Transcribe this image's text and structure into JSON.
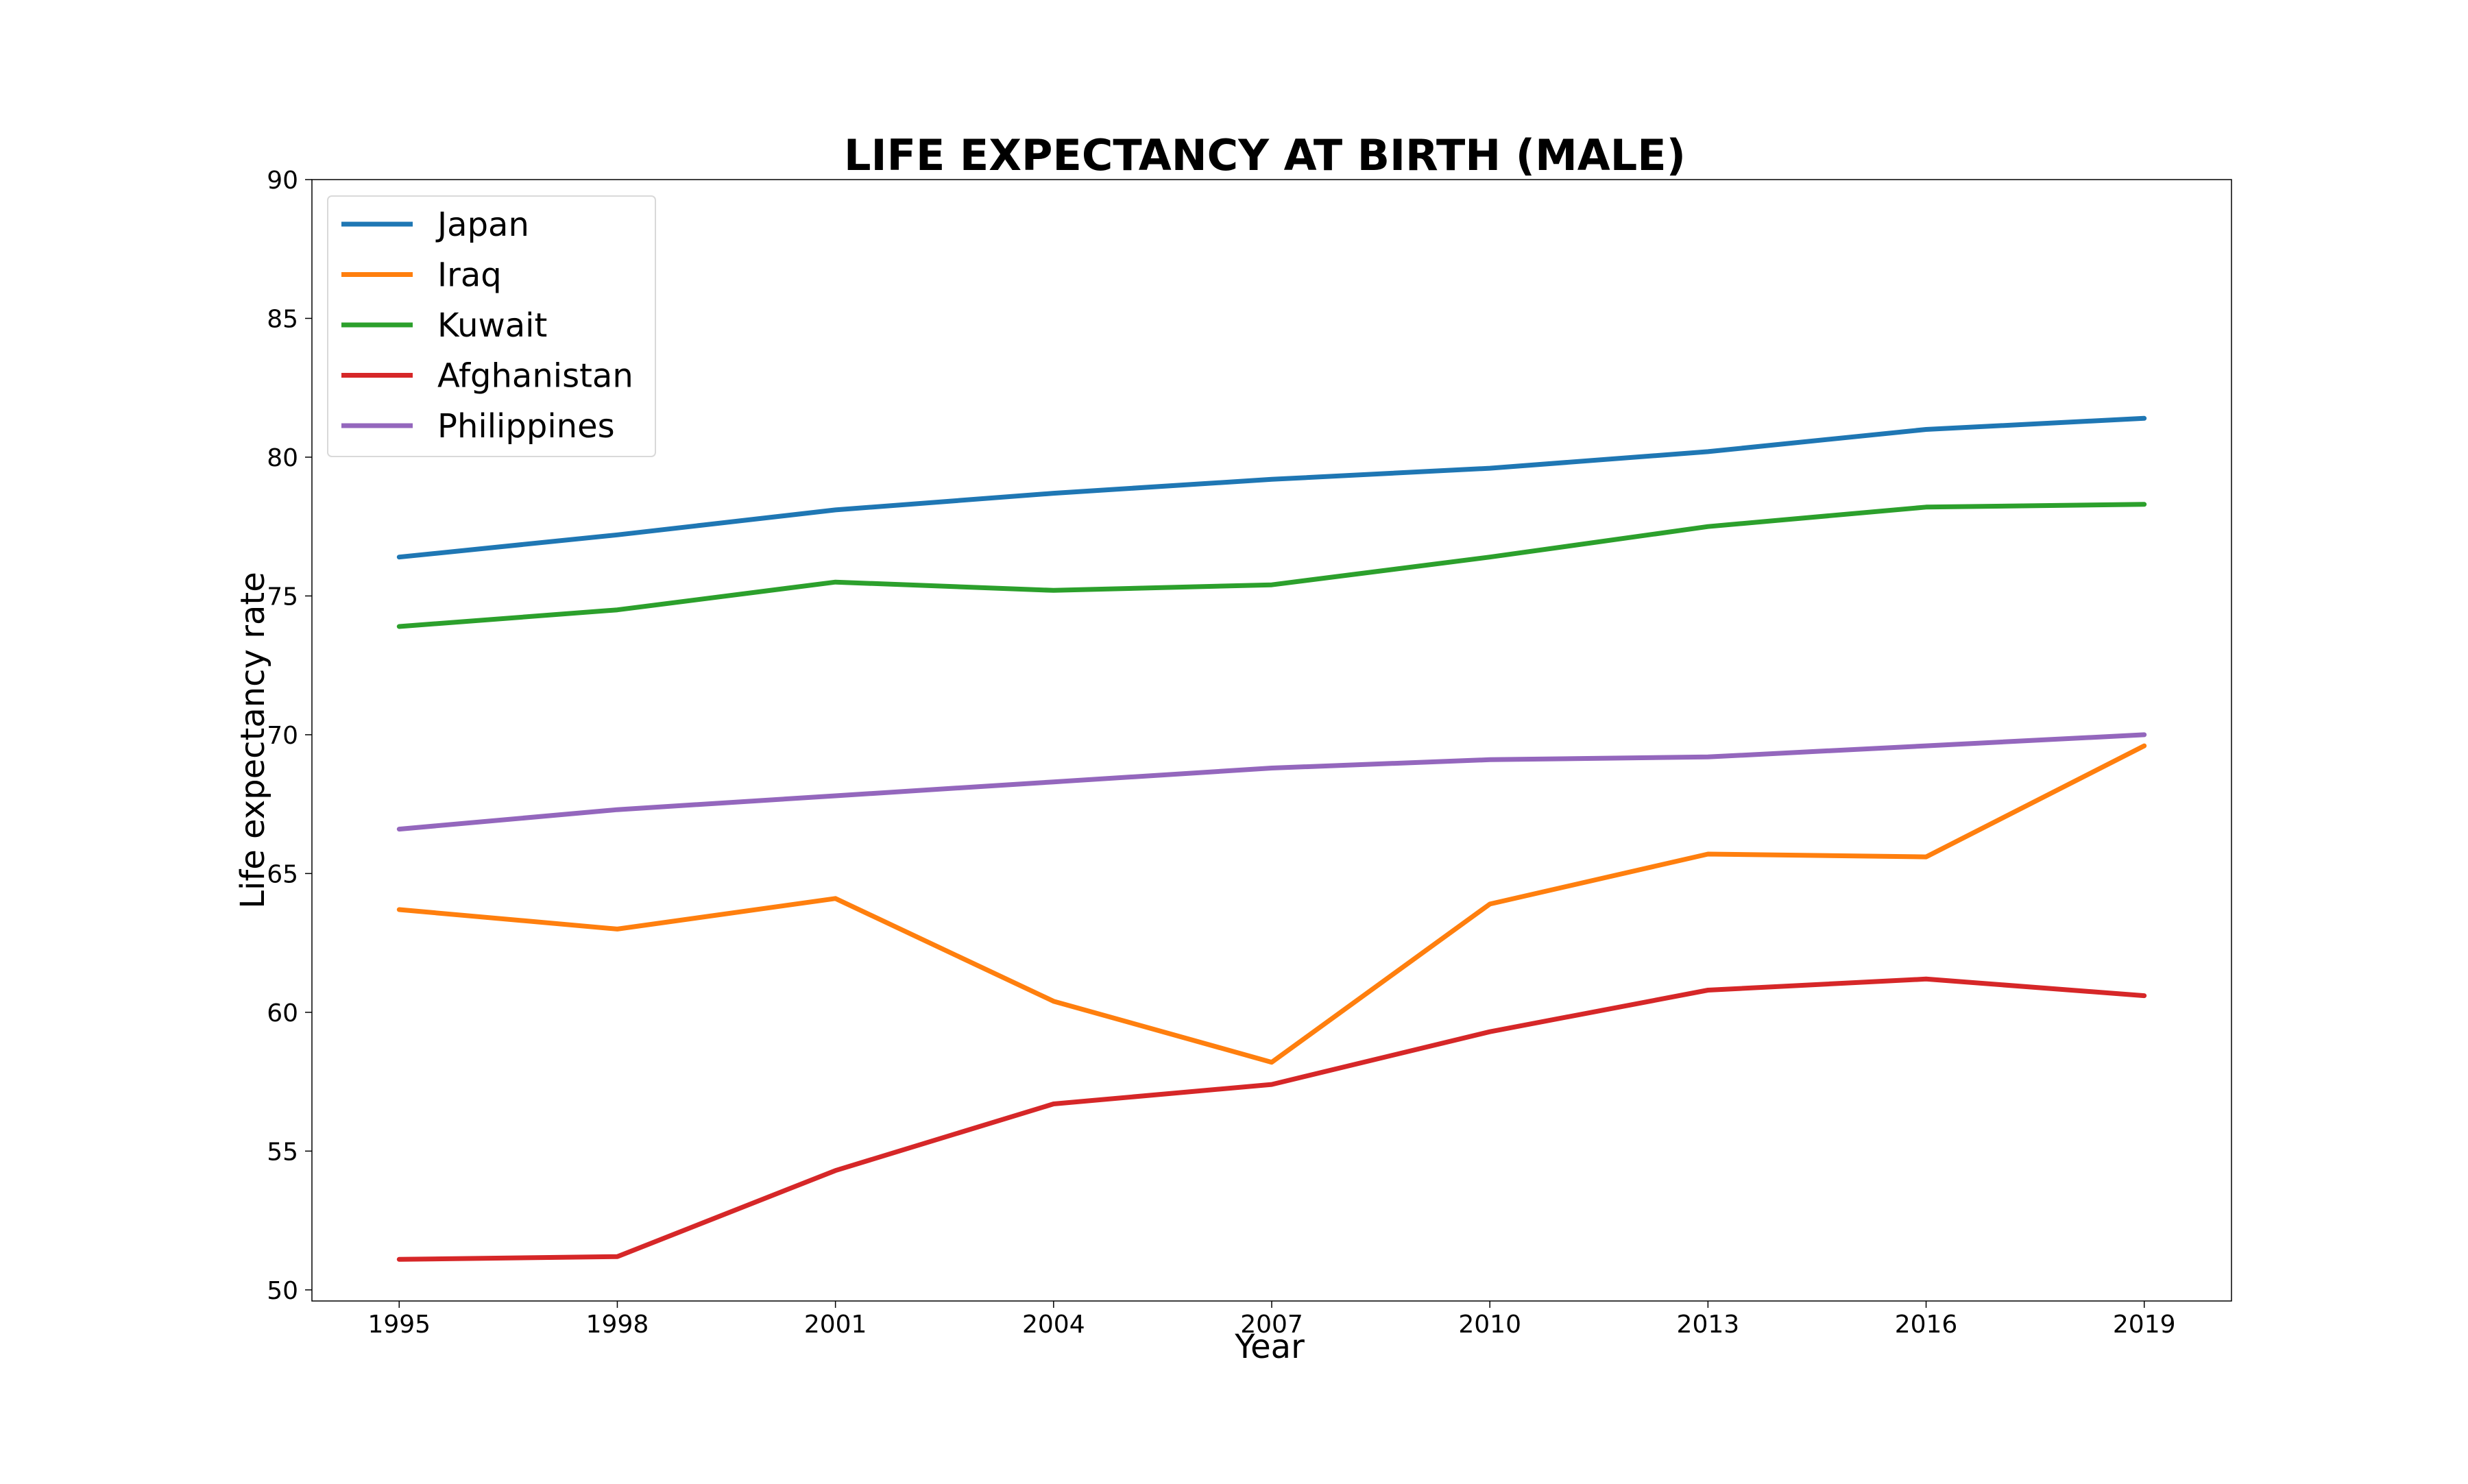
{
  "chart_data": {
    "type": "line",
    "title": "LIFE EXPECTANCY AT BIRTH (MALE)",
    "xlabel": "Year",
    "ylabel": "Life expectancy rate",
    "x": [
      1995,
      1998,
      2001,
      2004,
      2007,
      2010,
      2013,
      2016,
      2019
    ],
    "xticks": [
      "1995",
      "1998",
      "2001",
      "2004",
      "2007",
      "2010",
      "2013",
      "2016",
      "2019"
    ],
    "yticks": [
      "50",
      "55",
      "60",
      "65",
      "70",
      "75",
      "80",
      "85",
      "90"
    ],
    "xlim": [
      1993.8,
      2020.2
    ],
    "ylim": [
      49.6,
      90
    ],
    "grid": false,
    "legend_position": "top-left",
    "series": [
      {
        "name": "Japan",
        "color": "#1f77b4",
        "values": [
          76.4,
          77.2,
          78.1,
          78.7,
          79.2,
          79.6,
          80.2,
          81.0,
          81.4
        ]
      },
      {
        "name": "Iraq",
        "color": "#ff7f0e",
        "values": [
          63.7,
          63.0,
          64.1,
          60.4,
          58.2,
          63.9,
          65.7,
          65.6,
          69.6
        ]
      },
      {
        "name": "Kuwait",
        "color": "#2ca02c",
        "values": [
          73.9,
          74.5,
          75.5,
          75.2,
          75.4,
          76.4,
          77.5,
          78.2,
          78.3
        ]
      },
      {
        "name": "Afghanistan",
        "color": "#d62728",
        "values": [
          51.1,
          51.2,
          54.3,
          56.7,
          57.4,
          59.3,
          60.8,
          61.2,
          60.6
        ]
      },
      {
        "name": "Philippines",
        "color": "#9467bd",
        "values": [
          66.6,
          67.3,
          67.8,
          68.3,
          68.8,
          69.1,
          69.2,
          69.6,
          70.0
        ]
      }
    ]
  }
}
